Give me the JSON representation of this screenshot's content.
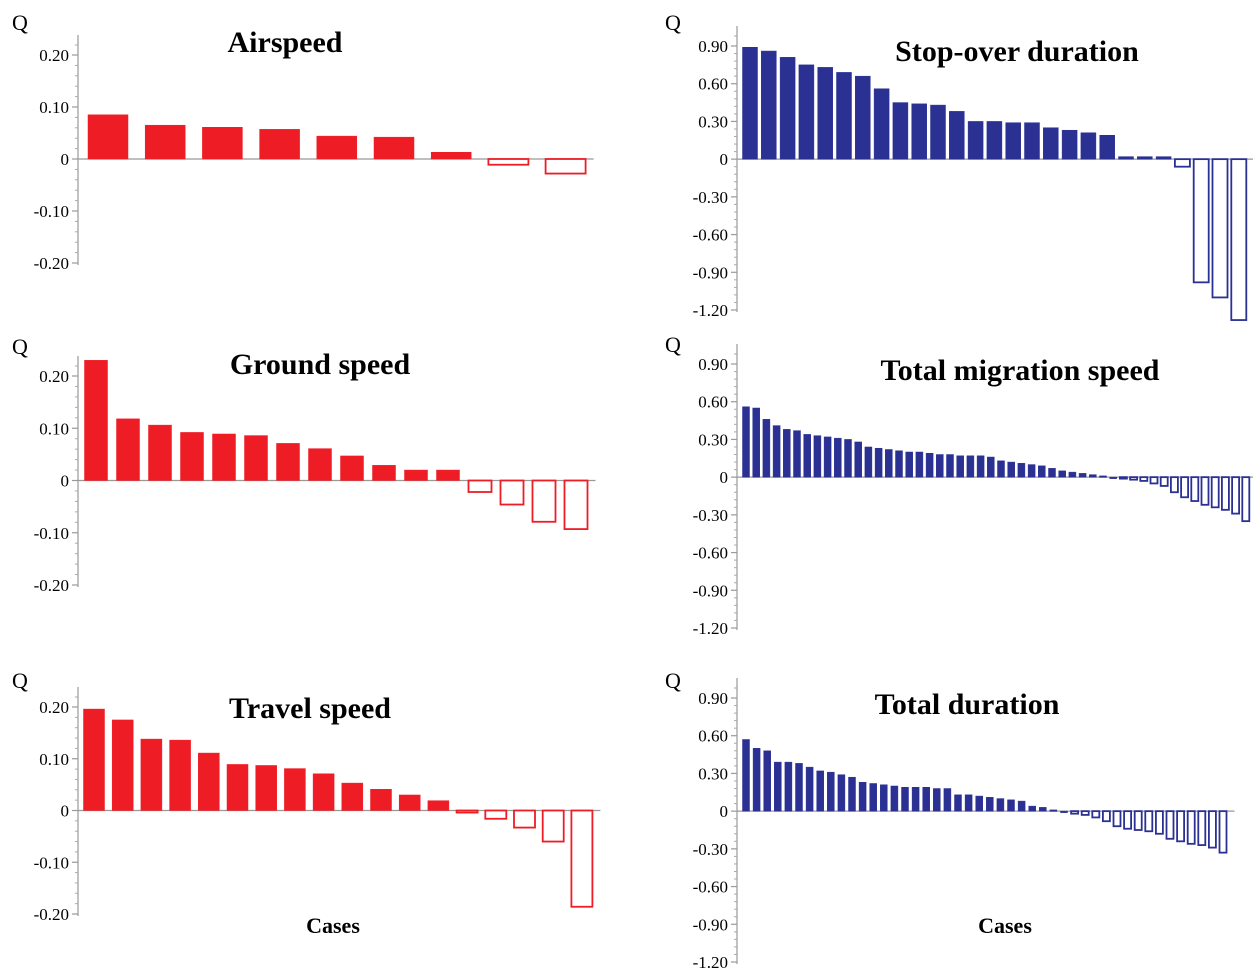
{
  "chart_data": [
    {
      "type": "bar",
      "title": "Airspeed",
      "ylabel": "Q",
      "xlabel": "",
      "ylim": [
        -0.2,
        0.2
      ],
      "yticks": [
        0.2,
        0.1,
        0,
        -0.1,
        -0.2
      ],
      "ytick_labels": [
        "0.20",
        "0.10",
        "0",
        "-0.10",
        "-0.20"
      ],
      "color": "#ee1c25",
      "fill_rule": "positive values filled, negative values outlined",
      "values": [
        0.085,
        0.065,
        0.061,
        0.057,
        0.044,
        0.042,
        0.013,
        -0.011,
        -0.028
      ]
    },
    {
      "type": "bar",
      "title": "Ground speed",
      "ylabel": "Q",
      "xlabel": "",
      "ylim": [
        -0.2,
        0.2
      ],
      "yticks": [
        0.2,
        0.1,
        0,
        -0.1,
        -0.2
      ],
      "ytick_labels": [
        "0.20",
        "0.10",
        "0",
        "-0.10",
        "-0.20"
      ],
      "color": "#ee1c25",
      "fill_rule": "positive values filled, negative values outlined",
      "values": [
        0.23,
        0.118,
        0.106,
        0.092,
        0.089,
        0.086,
        0.071,
        0.061,
        0.047,
        0.029,
        0.02,
        0.02,
        -0.022,
        -0.046,
        -0.079,
        -0.093
      ]
    },
    {
      "type": "bar",
      "title": "Travel speed",
      "ylabel": "Q",
      "xlabel": "Cases",
      "ylim": [
        -0.2,
        0.2
      ],
      "yticks": [
        0.2,
        0.1,
        0,
        -0.1,
        -0.2
      ],
      "ytick_labels": [
        "0.20",
        "0.10",
        "0",
        "-0.10",
        "-0.20"
      ],
      "color": "#ee1c25",
      "fill_rule": "positive values filled, negative values outlined",
      "values": [
        0.196,
        0.175,
        0.138,
        0.136,
        0.111,
        0.089,
        0.087,
        0.081,
        0.071,
        0.053,
        0.041,
        0.03,
        0.019,
        -0.004,
        -0.016,
        -0.033,
        -0.06,
        -0.186
      ]
    },
    {
      "type": "bar",
      "title": "Stop-over duration",
      "ylabel": "Q",
      "xlabel": "",
      "ylim": [
        -1.2,
        0.9
      ],
      "yticks": [
        0.9,
        0.6,
        0.3,
        0,
        -0.3,
        -0.6,
        -0.9,
        -1.2
      ],
      "ytick_labels": [
        "0.90",
        "0.60",
        "0.30",
        "0",
        "-0.30",
        "-0.60",
        "-0.90",
        "-1.20"
      ],
      "color": "#2b3193",
      "fill_rule": "positive values filled, negative values outlined",
      "values": [
        0.89,
        0.86,
        0.81,
        0.75,
        0.73,
        0.69,
        0.66,
        0.56,
        0.45,
        0.44,
        0.43,
        0.38,
        0.3,
        0.3,
        0.29,
        0.29,
        0.25,
        0.23,
        0.21,
        0.19,
        0.02,
        0.02,
        0.02,
        -0.06,
        -0.98,
        -1.1,
        -1.28
      ]
    },
    {
      "type": "bar",
      "title": "Total migration speed",
      "ylabel": "Q",
      "xlabel": "",
      "ylim": [
        -1.2,
        0.9
      ],
      "yticks": [
        0.9,
        0.6,
        0.3,
        0,
        -0.3,
        -0.6,
        -0.9,
        -1.2
      ],
      "ytick_labels": [
        "0.90",
        "0.60",
        "0.30",
        "0",
        "-0.30",
        "-0.60",
        "-0.90",
        "-1.20"
      ],
      "color": "#2b3193",
      "fill_rule": "positive values filled, negative values outlined",
      "values": [
        0.56,
        0.55,
        0.46,
        0.41,
        0.38,
        0.37,
        0.34,
        0.33,
        0.32,
        0.31,
        0.3,
        0.28,
        0.24,
        0.23,
        0.22,
        0.21,
        0.2,
        0.2,
        0.19,
        0.18,
        0.18,
        0.17,
        0.17,
        0.17,
        0.16,
        0.13,
        0.12,
        0.11,
        0.1,
        0.09,
        0.07,
        0.05,
        0.04,
        0.03,
        0.02,
        0.01,
        0.0,
        -0.01,
        -0.02,
        -0.03,
        -0.05,
        -0.07,
        -0.12,
        -0.16,
        -0.19,
        -0.22,
        -0.24,
        -0.26,
        -0.29,
        -0.35
      ]
    },
    {
      "type": "bar",
      "title": "Total duration",
      "ylabel": "Q",
      "xlabel": "Cases",
      "ylim": [
        -1.2,
        0.9
      ],
      "yticks": [
        0.9,
        0.6,
        0.3,
        0,
        -0.3,
        -0.6,
        -0.9,
        -1.2
      ],
      "ytick_labels": [
        "0.90",
        "0.60",
        "0.30",
        "0",
        "-0.30",
        "-0.60",
        "-0.90",
        "-1.20"
      ],
      "color": "#2b3193",
      "fill_rule": "positive values filled, negative values outlined",
      "values": [
        0.57,
        0.5,
        0.48,
        0.39,
        0.39,
        0.38,
        0.35,
        0.32,
        0.31,
        0.29,
        0.27,
        0.23,
        0.22,
        0.21,
        0.2,
        0.19,
        0.19,
        0.19,
        0.18,
        0.18,
        0.13,
        0.13,
        0.12,
        0.11,
        0.1,
        0.09,
        0.08,
        0.04,
        0.03,
        0.01,
        0.0,
        -0.02,
        -0.03,
        -0.05,
        -0.08,
        -0.12,
        -0.14,
        -0.15,
        -0.16,
        -0.18,
        -0.22,
        -0.24,
        -0.26,
        -0.27,
        -0.29,
        -0.33
      ]
    }
  ]
}
